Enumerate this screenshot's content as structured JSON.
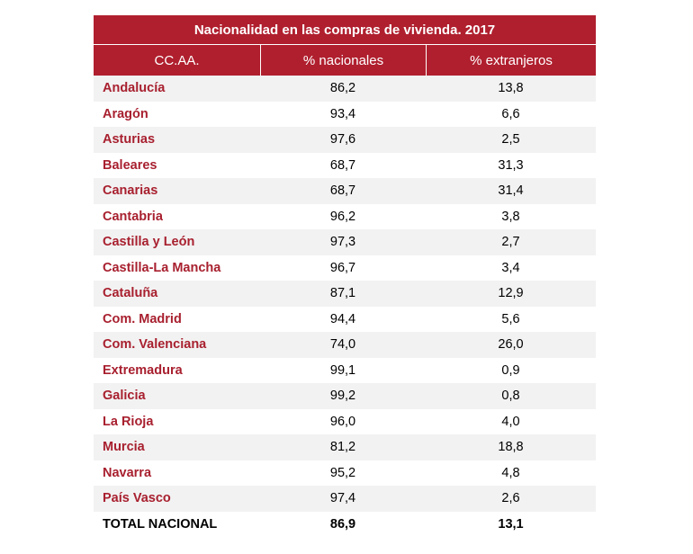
{
  "table": {
    "title": "Nacionalidad  en las compras de vivienda. 2017",
    "headers": [
      "CC.AA.",
      "% nacionales",
      "% extranjeros"
    ],
    "rows": [
      {
        "region": "Andalucía",
        "nacionales": "86,2",
        "extranjeros": "13,8"
      },
      {
        "region": "Aragón",
        "nacionales": "93,4",
        "extranjeros": "6,6"
      },
      {
        "region": "Asturias",
        "nacionales": "97,6",
        "extranjeros": "2,5"
      },
      {
        "region": "Baleares",
        "nacionales": "68,7",
        "extranjeros": "31,3"
      },
      {
        "region": "Canarias",
        "nacionales": "68,7",
        "extranjeros": "31,4"
      },
      {
        "region": "Cantabria",
        "nacionales": "96,2",
        "extranjeros": "3,8"
      },
      {
        "region": "Castilla y León",
        "nacionales": "97,3",
        "extranjeros": "2,7"
      },
      {
        "region": "Castilla-La Mancha",
        "nacionales": "96,7",
        "extranjeros": "3,4"
      },
      {
        "region": "Cataluña",
        "nacionales": "87,1",
        "extranjeros": "12,9"
      },
      {
        "region": "Com. Madrid",
        "nacionales": "94,4",
        "extranjeros": "5,6"
      },
      {
        "region": "Com. Valenciana",
        "nacionales": "74,0",
        "extranjeros": "26,0"
      },
      {
        "region": "Extremadura",
        "nacionales": "99,1",
        "extranjeros": "0,9"
      },
      {
        "region": "Galicia",
        "nacionales": "99,2",
        "extranjeros": "0,8"
      },
      {
        "region": "La Rioja",
        "nacionales": "96,0",
        "extranjeros": "4,0"
      },
      {
        "region": "Murcia",
        "nacionales": "81,2",
        "extranjeros": "18,8"
      },
      {
        "region": "Navarra",
        "nacionales": "95,2",
        "extranjeros": "4,8"
      },
      {
        "region": "País Vasco",
        "nacionales": "97,4",
        "extranjeros": "2,6"
      }
    ],
    "total": {
      "region": "TOTAL NACIONAL",
      "nacionales": "86,9",
      "extranjeros": "13,1"
    }
  },
  "colors": {
    "header_bg": "#b01f2e",
    "region_text": "#a8202f",
    "stripe": "#f2f2f2"
  }
}
